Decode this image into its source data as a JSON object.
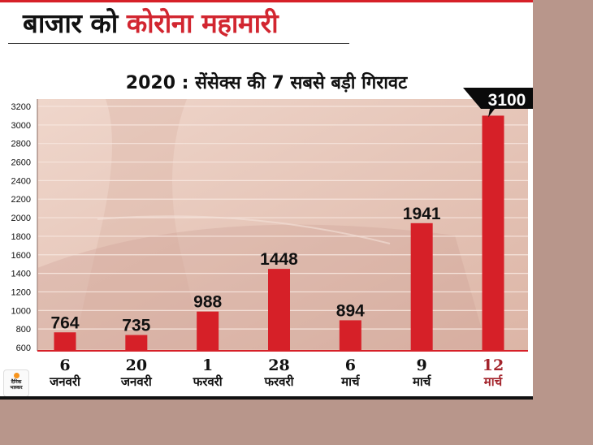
{
  "header": {
    "headline_part1": "बाजार को",
    "headline_part2": "कोरोना महामारी",
    "subtitle": "2020 : सेंसेक्स की 7 सबसे बड़ी गिरावट"
  },
  "logo": {
    "line1": "दैनिक",
    "line2": "भास्कर"
  },
  "colors": {
    "bar": "#d62028",
    "highlight_label": "#a3232b",
    "callout": "#0a0a0a",
    "plot_bg": "#e8cbbf",
    "gridline": "#f6e4dc",
    "page_bg": "#b8968b",
    "headline_red": "#d22630"
  },
  "chart_data": {
    "type": "bar",
    "title": "2020 : सेंसेक्स की 7 सबसे बड़ी गिरावट",
    "xlabel": "",
    "ylabel": "",
    "ylim": [
      600,
      3200
    ],
    "yticks": [
      600,
      800,
      1000,
      1200,
      1400,
      1600,
      1800,
      2000,
      2200,
      2400,
      2600,
      2800,
      3000,
      3200
    ],
    "grid": true,
    "categories": [
      {
        "day": "6",
        "month": "जनवरी"
      },
      {
        "day": "20",
        "month": "जनवरी"
      },
      {
        "day": "1",
        "month": "फरवरी"
      },
      {
        "day": "28",
        "month": "फरवरी"
      },
      {
        "day": "6",
        "month": "मार्च"
      },
      {
        "day": "9",
        "month": "मार्च"
      },
      {
        "day": "12",
        "month": "मार्च"
      }
    ],
    "values": [
      764,
      735,
      988,
      1448,
      894,
      1941,
      3100
    ],
    "highlight_index": 6,
    "legend": null
  }
}
